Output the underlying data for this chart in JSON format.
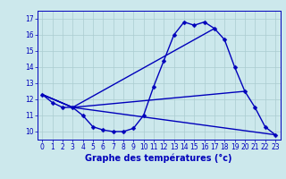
{
  "xlabel": "Graphe des températures (°c)",
  "xlim": [
    -0.5,
    23.5
  ],
  "ylim": [
    9.5,
    17.5
  ],
  "yticks": [
    10,
    11,
    12,
    13,
    14,
    15,
    16,
    17
  ],
  "xticks": [
    0,
    1,
    2,
    3,
    4,
    5,
    6,
    7,
    8,
    9,
    10,
    11,
    12,
    13,
    14,
    15,
    16,
    17,
    18,
    19,
    20,
    21,
    22,
    23
  ],
  "background_color": "#cce8ec",
  "line_color": "#0000bb",
  "grid_color": "#aaccd0",
  "line1_x": [
    0,
    1,
    2,
    3,
    4,
    5,
    6,
    7,
    8,
    9,
    10,
    11,
    12,
    13,
    14,
    15,
    16,
    17,
    18,
    19,
    20,
    21,
    22,
    23
  ],
  "line1_y": [
    12.3,
    11.8,
    11.5,
    11.5,
    11.0,
    10.3,
    10.1,
    10.0,
    10.0,
    10.2,
    11.0,
    12.8,
    14.4,
    16.0,
    16.8,
    16.6,
    16.8,
    16.4,
    15.7,
    14.0,
    12.5,
    11.5,
    10.3,
    9.8
  ],
  "line2_x": [
    0,
    3,
    23
  ],
  "line2_y": [
    12.3,
    11.5,
    9.8
  ],
  "line3_x": [
    0,
    3,
    17
  ],
  "line3_y": [
    12.3,
    11.5,
    16.4
  ],
  "line4_x": [
    0,
    3,
    20
  ],
  "line4_y": [
    12.3,
    11.5,
    12.5
  ],
  "markersize": 2.5,
  "linewidth": 1.0,
  "label_fontsize": 7,
  "tick_fontsize": 5.5
}
